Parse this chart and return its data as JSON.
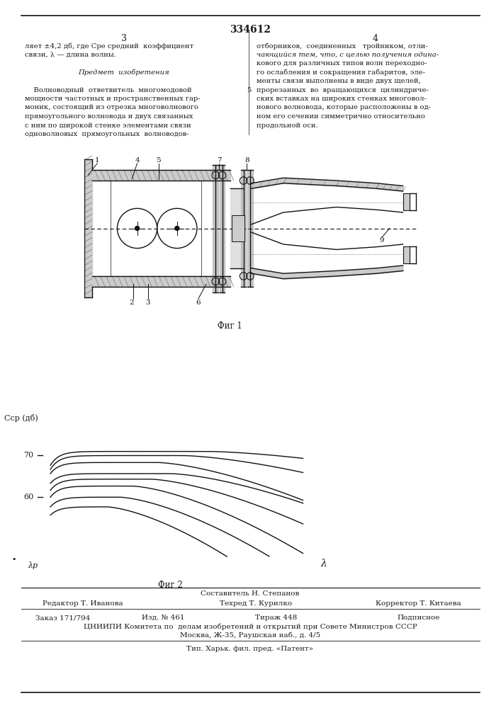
{
  "patent_number": "334612",
  "col3_header": "3",
  "col4_header": "4",
  "fig1_label": "Фиг 1",
  "fig2_label": "Фиг 2",
  "y_label": "Cср (дб)",
  "y_tick_70": "70",
  "y_tick_60": "60",
  "x_label_lambda": "λ",
  "x_origin_label": "λр",
  "footer_line0": "Составитель Н. Степанов",
  "footer_line1a": "Редактор Т. Иванова",
  "footer_line1b": "Техред Т. Курилко",
  "footer_line1c": "Корректор Т. Китаева",
  "footer_line2a": "Заказ 171/794",
  "footer_line2b": "Изд. № 461",
  "footer_line2c": "Тираж 448",
  "footer_line2d": "Подписное",
  "footer_line3": "ЦНИИПИ Комитета по  делам изобретений и открытий при Совете Министров СССР",
  "footer_line4": "Москва, Ж-35, Раушская наб., д. 4/5",
  "footer_line5": "Тип. Харьк. фил. пред. «Патент»",
  "bg_color": "#ffffff",
  "text_color": "#1a1a1a",
  "line_color": "#111111"
}
